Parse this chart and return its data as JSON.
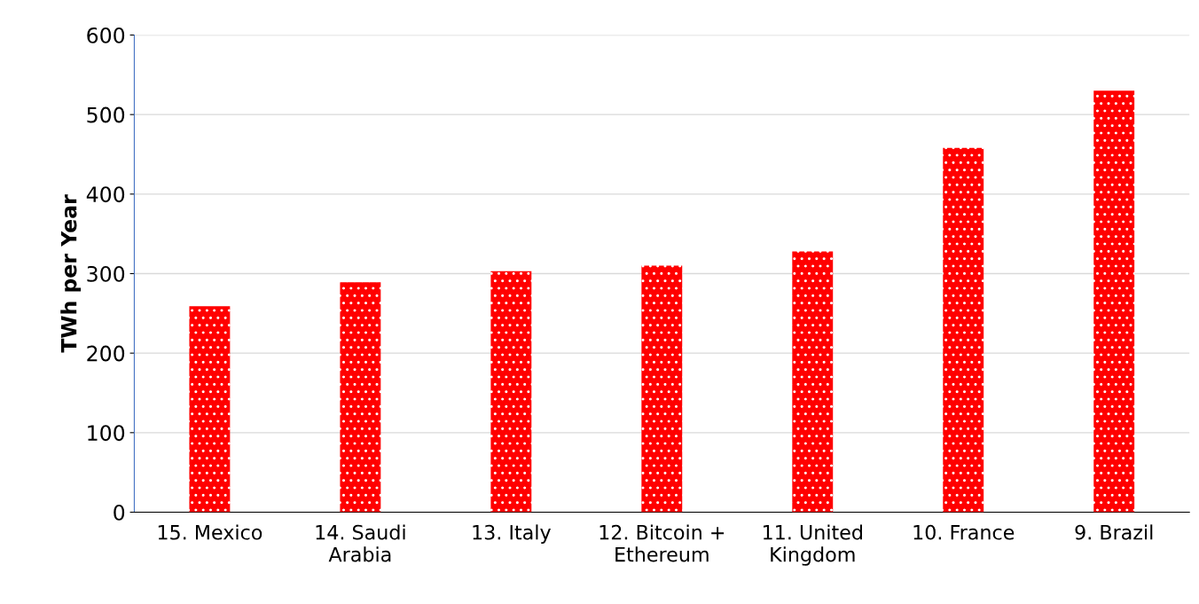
{
  "chart_data": {
    "type": "bar",
    "ylabel": "TWh per Year",
    "categories": [
      "15. Mexico",
      "14. Saudi\nArabia",
      "13. Italy",
      "12. Bitcoin +\nEthereum",
      "11. United\nKingdom",
      "10. France",
      "9. Brazil"
    ],
    "values": [
      259,
      289,
      303,
      310,
      328,
      458,
      530
    ],
    "color": "#ff0000",
    "ylim": [
      0,
      600
    ],
    "yticks": [
      0,
      100,
      200,
      300,
      400,
      500,
      600
    ],
    "grid": "y"
  }
}
